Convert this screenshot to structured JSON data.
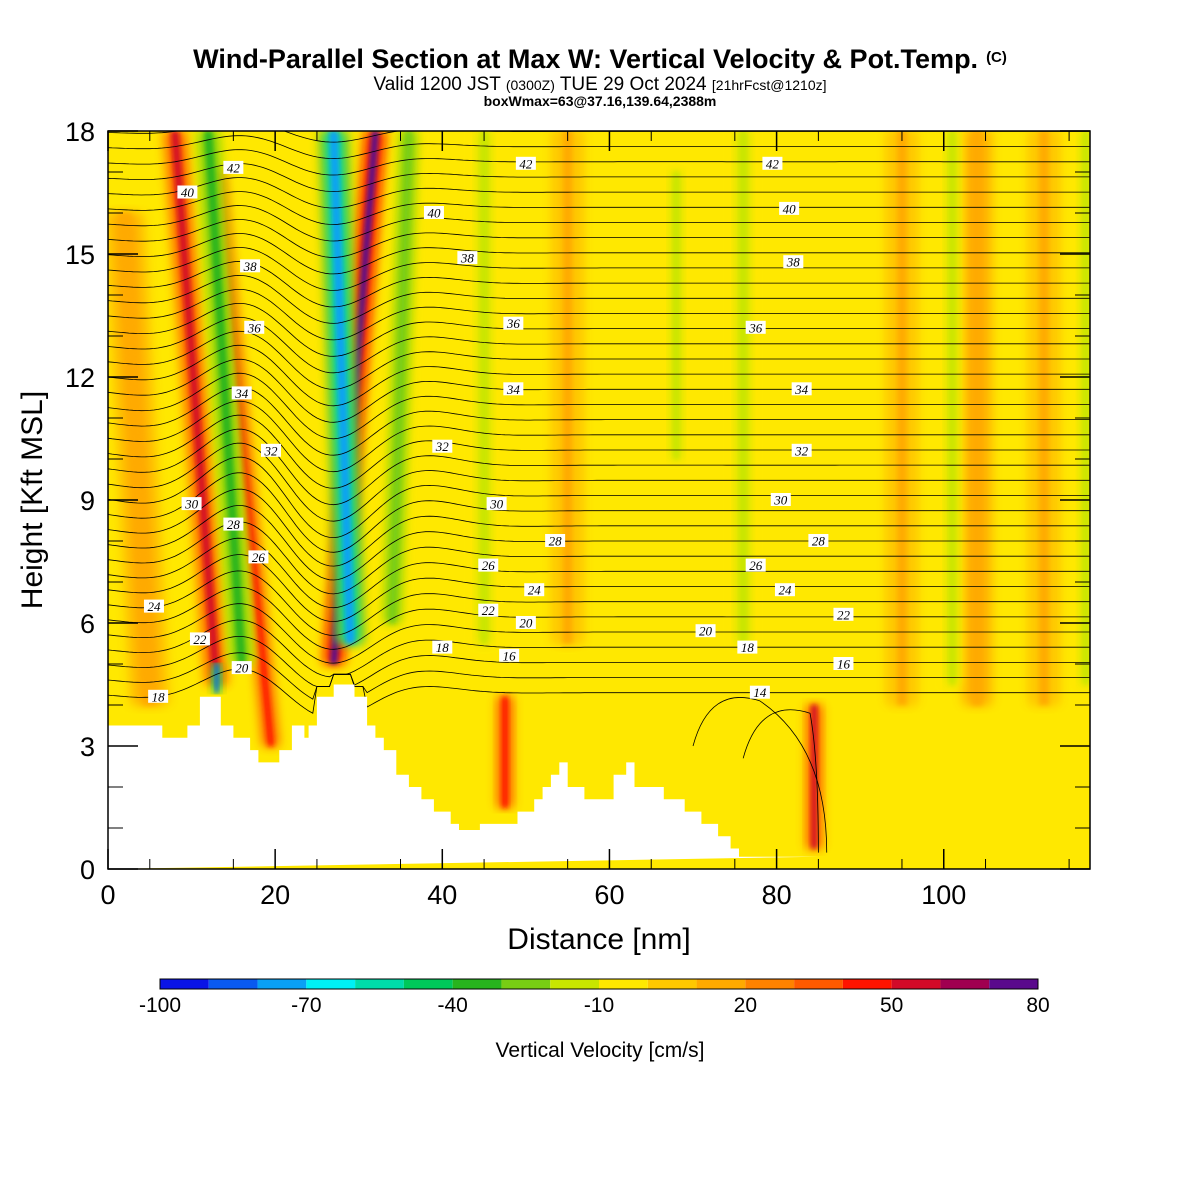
{
  "header": {
    "title": "Wind-Parallel Section at Max W: Vertical Velocity & Pot.Temp.",
    "copyright": "(C)",
    "subtitle_a": "Valid 1200 JST",
    "subtitle_b": "(0300Z)",
    "subtitle_c": "TUE 29 Oct 2024",
    "subtitle_d": "[21hrFcst@1210z]",
    "info": "boxWmax=63@37.16,139.64,2388m"
  },
  "colors": {
    "background_field": "#ffe800",
    "terrain": "#ffffff",
    "contour": "#000000"
  },
  "colorbar": {
    "title": "Vertical Velocity [cm/s]",
    "tick_labels": [
      "-100",
      "-70",
      "-40",
      "-10",
      "20",
      "50",
      "80"
    ],
    "tick_values": [
      -100,
      -70,
      -40,
      -10,
      20,
      50,
      80
    ],
    "bins": [
      {
        "from": -100,
        "to": -90,
        "color": "#0a14e6"
      },
      {
        "from": -90,
        "to": -80,
        "color": "#0a5af0"
      },
      {
        "from": -80,
        "to": -70,
        "color": "#0aa0f5"
      },
      {
        "from": -70,
        "to": -60,
        "color": "#00f0f5"
      },
      {
        "from": -60,
        "to": -50,
        "color": "#00dcaa"
      },
      {
        "from": -50,
        "to": -40,
        "color": "#00c85a"
      },
      {
        "from": -40,
        "to": -30,
        "color": "#28b41e"
      },
      {
        "from": -30,
        "to": -20,
        "color": "#78cd14"
      },
      {
        "from": -20,
        "to": -10,
        "color": "#c8e600"
      },
      {
        "from": -10,
        "to": 0,
        "color": "#ffe800"
      },
      {
        "from": 0,
        "to": 10,
        "color": "#ffc800"
      },
      {
        "from": 10,
        "to": 20,
        "color": "#ffaa00"
      },
      {
        "from": 20,
        "to": 30,
        "color": "#ff8200"
      },
      {
        "from": 30,
        "to": 40,
        "color": "#ff5a00"
      },
      {
        "from": 40,
        "to": 50,
        "color": "#ff1400"
      },
      {
        "from": 50,
        "to": 60,
        "color": "#d20a28"
      },
      {
        "from": 60,
        "to": 70,
        "color": "#a00050"
      },
      {
        "from": 70,
        "to": 80,
        "color": "#5a0a8c"
      }
    ]
  },
  "chart_data": {
    "type": "heatmap",
    "title": "Wind-Parallel Section at Max W: Vertical Velocity & Pot.Temp.",
    "xlabel": "Distance [nm]",
    "ylabel": "Height [Kft MSL]",
    "xlim": [
      0,
      117.5
    ],
    "ylim": [
      0,
      18
    ],
    "x_ticks": [
      0,
      20,
      40,
      60,
      80,
      100
    ],
    "x_tick_labels": [
      "0",
      "20",
      "40",
      "60",
      "80",
      "100"
    ],
    "y_ticks": [
      0,
      3,
      6,
      9,
      12,
      15,
      18
    ],
    "y_tick_labels": [
      "0",
      "3",
      "6",
      "9",
      "12",
      "15",
      "18"
    ],
    "terrain_profile": {
      "x": [
        0,
        6.5,
        6.5,
        9.5,
        9.5,
        11,
        11,
        13.5,
        13.5,
        15,
        15,
        17,
        17,
        18,
        18,
        20.5,
        20.5,
        22,
        22,
        23.5,
        23.5,
        24,
        24,
        25,
        25,
        27,
        27,
        29.5,
        29.5,
        31,
        31,
        32,
        32,
        33,
        33,
        34.5,
        34.5,
        36,
        36,
        37.5,
        37.5,
        39,
        39,
        41,
        41,
        42,
        42,
        44.5,
        44.5,
        49,
        49,
        51,
        51,
        52,
        52,
        53,
        53,
        54,
        54,
        55,
        55,
        57,
        57,
        60.5,
        60.5,
        62,
        62,
        63,
        63,
        66.5,
        66.5,
        69,
        69,
        71,
        71,
        73,
        73,
        74.5,
        74.5,
        75.5,
        75.5,
        76.5,
        76.5,
        77.5,
        77.5,
        78.5,
        78.5,
        81,
        81,
        85,
        85,
        117.5
      ],
      "y": [
        3.5,
        3.5,
        3.2,
        3.2,
        3.5,
        3.5,
        4.2,
        4.2,
        3.5,
        3.5,
        3.2,
        3.2,
        2.9,
        2.9,
        2.6,
        2.6,
        2.9,
        2.9,
        3.5,
        3.5,
        3.2,
        3.2,
        3.5,
        3.5,
        4.2,
        4.2,
        4.5,
        4.5,
        4.2,
        4.2,
        3.5,
        3.5,
        3.2,
        3.2,
        2.9,
        2.9,
        2.3,
        2.3,
        2.0,
        2.0,
        1.7,
        1.7,
        1.4,
        1.4,
        1.1,
        1.1,
        0.95,
        0.95,
        1.1,
        1.1,
        1.4,
        1.4,
        1.7,
        1.7,
        2.0,
        2.0,
        2.3,
        2.3,
        2.6,
        2.6,
        2.0,
        2.0,
        1.7,
        1.7,
        2.3,
        2.3,
        2.6,
        2.6,
        2.0,
        2.0,
        1.7,
        1.7,
        1.4,
        1.4,
        1.1,
        1.1,
        0.8,
        0.8,
        0.5,
        0.5,
        0.3,
        0.3,
        0.3,
        0.3,
        0.3,
        0.3,
        0.3,
        0.3,
        0.3,
        0.3,
        0.3
      ]
    },
    "w_updraft_bands": [
      {
        "x_base": 13,
        "y_base": 4.5,
        "x_top": 8,
        "y_top": 18,
        "w": 50,
        "width": 1.6
      },
      {
        "x_base": 19.5,
        "y_base": 3.0,
        "x_top": 13,
        "y_top": 17,
        "w": 45,
        "width": 1.2
      },
      {
        "x_base": 27,
        "y_base": 5.0,
        "x_top": 32,
        "y_top": 18,
        "w": 70,
        "width": 1.5
      },
      {
        "x_base": 47.5,
        "y_base": 1.5,
        "x_top": 47.5,
        "y_top": 4.2,
        "w": 45,
        "width": 1.2
      },
      {
        "x_base": 84.5,
        "y_base": 0.5,
        "x_top": 84.5,
        "y_top": 4.0,
        "w": 50,
        "width": 1.2
      },
      {
        "x_base": 5,
        "y_base": 4.0,
        "x_top": 2,
        "y_top": 16,
        "w": 15,
        "width": 2.5
      },
      {
        "x_base": 55,
        "y_base": 5.5,
        "x_top": 55,
        "y_top": 18,
        "w": 12,
        "width": 2.0
      },
      {
        "x_base": 95,
        "y_base": 4.0,
        "x_top": 95,
        "y_top": 18,
        "w": 12,
        "width": 2.0
      },
      {
        "x_base": 104,
        "y_base": 4.0,
        "x_top": 104,
        "y_top": 18,
        "w": 15,
        "width": 2.0
      },
      {
        "x_base": 112,
        "y_base": 4.0,
        "x_top": 112,
        "y_top": 18,
        "w": 12,
        "width": 2.0
      }
    ],
    "w_downdraft_bands": [
      {
        "x_base": 29,
        "y_base": 5.5,
        "x_top": 27,
        "y_top": 18,
        "w": -75,
        "width": 1.8
      },
      {
        "x_base": 16,
        "y_base": 5.0,
        "x_top": 12,
        "y_top": 18,
        "w": -35,
        "width": 1.6
      },
      {
        "x_base": 13,
        "y_base": 4.3,
        "x_top": 13,
        "y_top": 5.0,
        "w": -85,
        "width": 0.6
      },
      {
        "x_base": 34,
        "y_base": 6.0,
        "x_top": 36,
        "y_top": 18,
        "w": -30,
        "width": 1.2
      },
      {
        "x_base": 45,
        "y_base": 5.5,
        "x_top": 45,
        "y_top": 18,
        "w": -20,
        "width": 1.2
      },
      {
        "x_base": 76,
        "y_base": 5.5,
        "x_top": 76,
        "y_top": 18,
        "w": -20,
        "width": 1.2
      },
      {
        "x_base": 68,
        "y_base": 10.0,
        "x_top": 68,
        "y_top": 17,
        "w": -20,
        "width": 1.0
      },
      {
        "x_base": 101,
        "y_base": 4.5,
        "x_top": 101,
        "y_top": 18,
        "w": -20,
        "width": 1.0
      },
      {
        "x_base": 117,
        "y_base": 4.5,
        "x_top": 117,
        "y_top": 18,
        "w": -20,
        "width": 1.0
      }
    ],
    "contour_labels": [
      {
        "text": "42",
        "x": 15,
        "y": 17.1
      },
      {
        "text": "42",
        "x": 50,
        "y": 17.2
      },
      {
        "text": "42",
        "x": 79.5,
        "y": 17.2
      },
      {
        "text": "40",
        "x": 9.5,
        "y": 16.5
      },
      {
        "text": "40",
        "x": 39,
        "y": 16.0
      },
      {
        "text": "40",
        "x": 81.5,
        "y": 16.1
      },
      {
        "text": "38",
        "x": 17,
        "y": 14.7
      },
      {
        "text": "38",
        "x": 43,
        "y": 14.9
      },
      {
        "text": "38",
        "x": 82,
        "y": 14.8
      },
      {
        "text": "36",
        "x": 17.5,
        "y": 13.2
      },
      {
        "text": "36",
        "x": 48.5,
        "y": 13.3
      },
      {
        "text": "36",
        "x": 77.5,
        "y": 13.2
      },
      {
        "text": "34",
        "x": 16,
        "y": 11.6
      },
      {
        "text": "34",
        "x": 48.5,
        "y": 11.7
      },
      {
        "text": "34",
        "x": 83,
        "y": 11.7
      },
      {
        "text": "32",
        "x": 19.5,
        "y": 10.2
      },
      {
        "text": "32",
        "x": 40,
        "y": 10.3
      },
      {
        "text": "32",
        "x": 83,
        "y": 10.2
      },
      {
        "text": "30",
        "x": 10,
        "y": 8.9
      },
      {
        "text": "30",
        "x": 46.5,
        "y": 8.9
      },
      {
        "text": "30",
        "x": 80.5,
        "y": 9.0
      },
      {
        "text": "28",
        "x": 15,
        "y": 8.4
      },
      {
        "text": "28",
        "x": 53.5,
        "y": 8.0
      },
      {
        "text": "28",
        "x": 85,
        "y": 8.0
      },
      {
        "text": "26",
        "x": 18,
        "y": 7.6
      },
      {
        "text": "26",
        "x": 45.5,
        "y": 7.4
      },
      {
        "text": "26",
        "x": 77.5,
        "y": 7.4
      },
      {
        "text": "24",
        "x": 5.5,
        "y": 6.4
      },
      {
        "text": "24",
        "x": 51,
        "y": 6.8
      },
      {
        "text": "24",
        "x": 81,
        "y": 6.8
      },
      {
        "text": "22",
        "x": 11,
        "y": 5.6
      },
      {
        "text": "22",
        "x": 45.5,
        "y": 6.3
      },
      {
        "text": "22",
        "x": 88,
        "y": 6.2
      },
      {
        "text": "20",
        "x": 16,
        "y": 4.9
      },
      {
        "text": "20",
        "x": 50,
        "y": 6.0
      },
      {
        "text": "20",
        "x": 71.5,
        "y": 5.8
      },
      {
        "text": "18",
        "x": 6,
        "y": 4.2
      },
      {
        "text": "18",
        "x": 40,
        "y": 5.4
      },
      {
        "text": "18",
        "x": 76.5,
        "y": 5.4
      },
      {
        "text": "16",
        "x": 48,
        "y": 5.2
      },
      {
        "text": "16",
        "x": 88,
        "y": 5.0
      },
      {
        "text": "14",
        "x": 78,
        "y": 4.3
      }
    ]
  }
}
